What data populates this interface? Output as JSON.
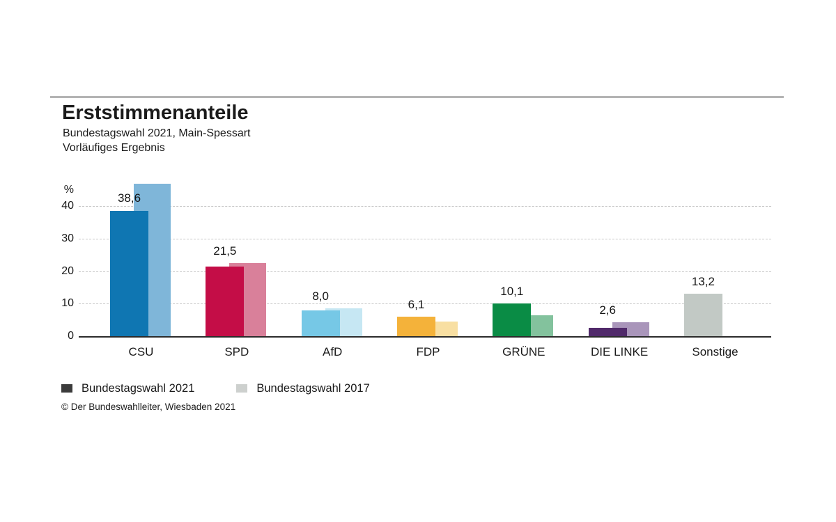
{
  "header": {
    "title": "Erststimmenanteile",
    "subtitle1": "Bundestagswahl 2021, Main-Spessart",
    "subtitle2": "Vorläufiges Ergebnis"
  },
  "chart_data": {
    "type": "bar",
    "title": "Erststimmenanteile",
    "subtitle": "Bundestagswahl 2021, Main-Spessart — Vorläufiges Ergebnis",
    "ylabel": "%",
    "xlabel": "",
    "ylim": [
      0,
      48
    ],
    "yticks": [
      0,
      10,
      20,
      30,
      40
    ],
    "grid": "horizontal-dashed",
    "legend_position": "bottom-left",
    "categories": [
      "CSU",
      "SPD",
      "AfD",
      "FDP",
      "GRÜNE",
      "DIE LINKE",
      "Sonstige"
    ],
    "series": [
      {
        "name": "Bundestagswahl 2021",
        "values": [
          38.6,
          21.5,
          8.0,
          6.1,
          10.1,
          2.6,
          13.2
        ],
        "value_labels": [
          "38,6",
          "21,5",
          "8,0",
          "6,1",
          "10,1",
          "2,6",
          "13,2"
        ],
        "colors": [
          "#0f76b2",
          "#c40d47",
          "#76c8e6",
          "#f4b23a",
          "#0a8c45",
          "#50296a",
          "#c2c9c5"
        ]
      },
      {
        "name": "Bundestagswahl 2017",
        "values": [
          47.0,
          22.5,
          8.7,
          4.5,
          6.6,
          4.4,
          null
        ],
        "value_labels": [
          null,
          null,
          null,
          null,
          null,
          null,
          null
        ],
        "colors": [
          "#7fb6d9",
          "#d9809a",
          "#c6e7f3",
          "#f8dfa2",
          "#83c29d",
          "#a995ba",
          null
        ]
      }
    ]
  },
  "legend": {
    "items": [
      {
        "label": "Bundestagswahl 2021",
        "swatch": "#3b3b3b"
      },
      {
        "label": "Bundestagswahl 2017",
        "swatch": "#cdd0ce"
      }
    ]
  },
  "footer": {
    "copyright": "© Der Bundeswahlleiter, Wiesbaden 2021"
  }
}
